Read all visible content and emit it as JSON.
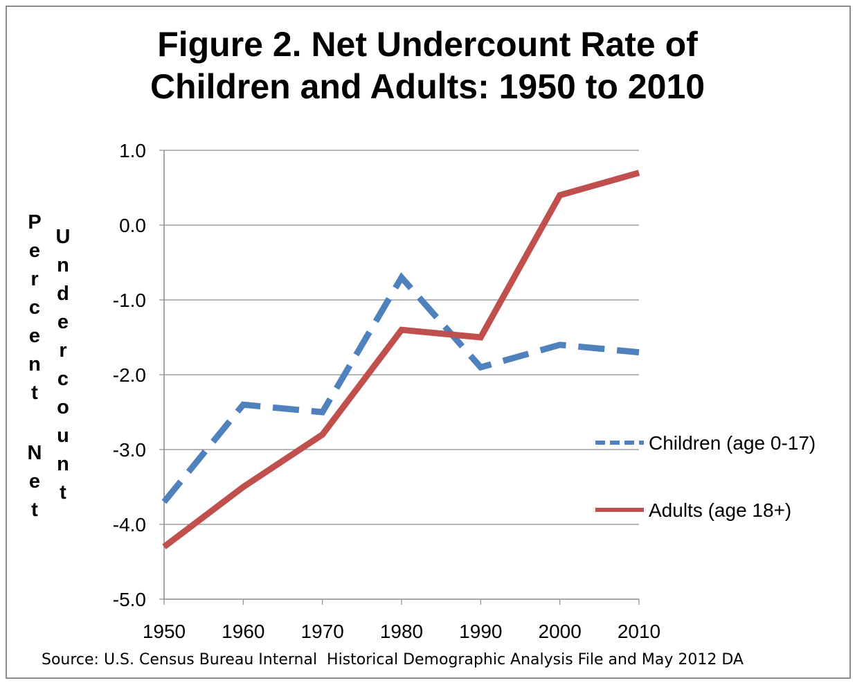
{
  "chart_data": {
    "type": "line",
    "title_lines": [
      "Figure 2. Net Undercount Rate of",
      "Children and Adults: 1950 to 2010"
    ],
    "ylabel_words": [
      "Percent",
      "Net",
      "Undercount"
    ],
    "x": [
      1950,
      1960,
      1970,
      1980,
      1990,
      2000,
      2010
    ],
    "ylim": [
      -5.0,
      1.0
    ],
    "yticks": [
      "1.0",
      "0.0",
      "-1.0",
      "-2.0",
      "-3.0",
      "-4.0",
      "-5.0"
    ],
    "grid": true,
    "legend_position": "right",
    "series": [
      {
        "name": "Children (age 0-17)",
        "values": [
          -3.7,
          -2.4,
          -2.5,
          -0.7,
          -1.9,
          -1.6,
          -1.7
        ],
        "color": "#4f81bd",
        "style": "dashed"
      },
      {
        "name": "Adults (age 18+)",
        "values": [
          -4.3,
          -3.5,
          -2.8,
          -1.4,
          -1.5,
          0.4,
          0.7
        ],
        "color": "#c0504d",
        "style": "solid"
      }
    ],
    "source": "Source: U.S. Census Bureau Internal  Historical Demographic Analysis File and May 2012 DA"
  }
}
